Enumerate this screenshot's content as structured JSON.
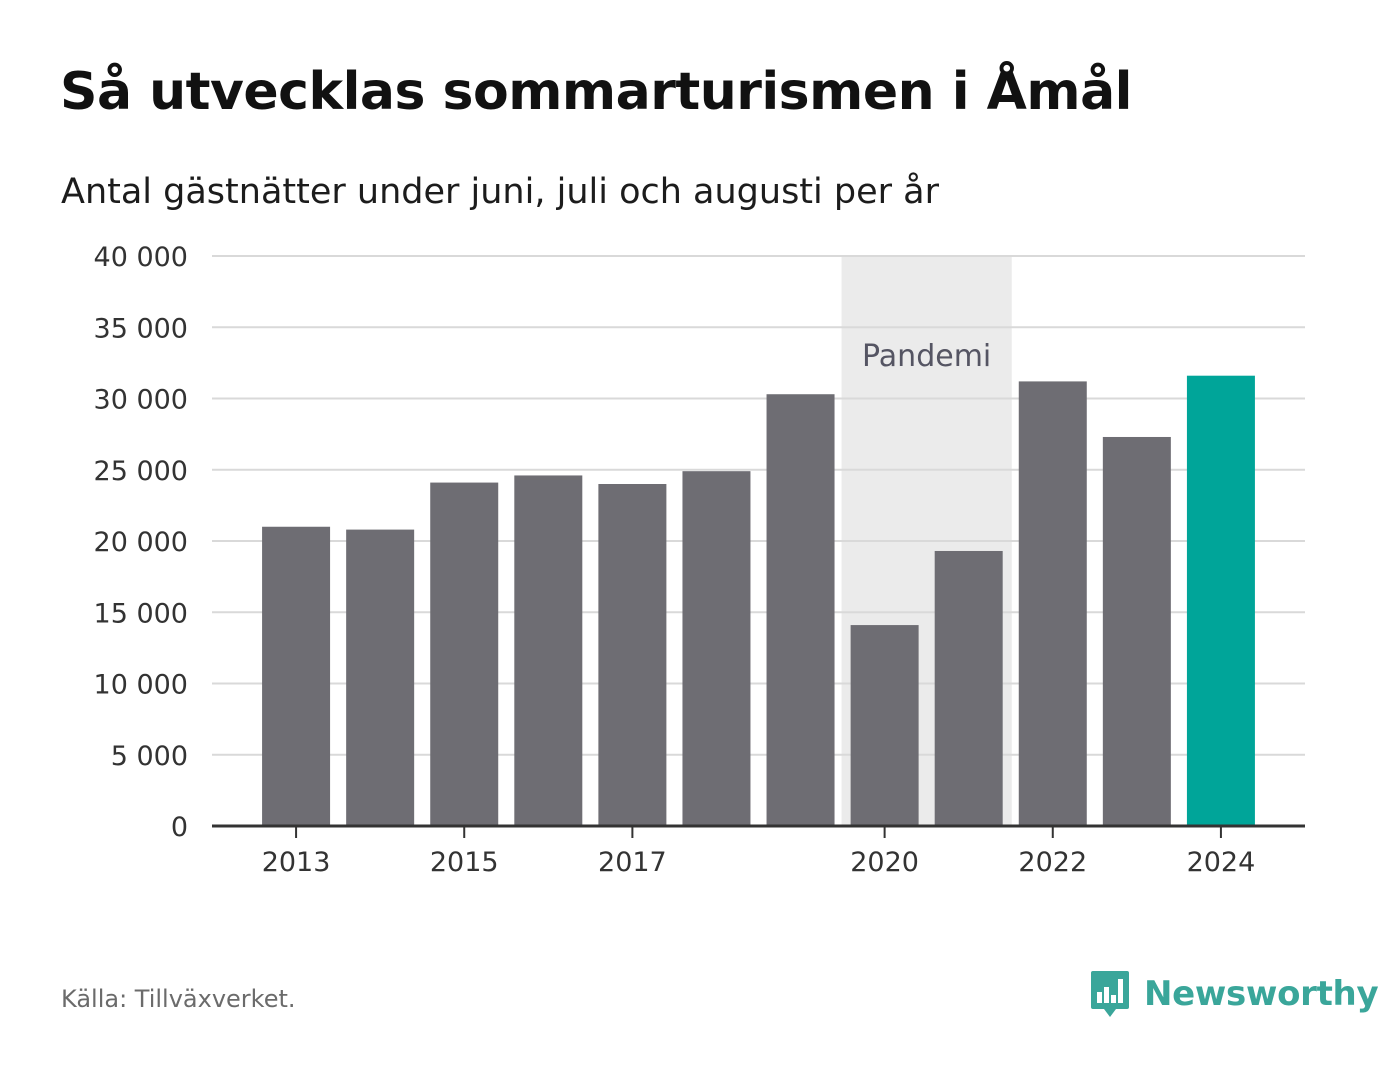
{
  "header": {
    "title": "Så utvecklas sommarturismen i Åmål",
    "subtitle": "Antal gästnätter under juni, juli och augusti per år"
  },
  "footer": {
    "source": "Källa: Tillväxverket.",
    "brand": "Newsworthy",
    "brand_icon": "bar-chart-speech-bubble-icon"
  },
  "colors": {
    "bar": "#6e6d73",
    "highlight": "#00a599",
    "band": "#ebebeb",
    "brand": "#3aa69a"
  },
  "chart_data": {
    "type": "bar",
    "categories": [
      "2013",
      "2014",
      "2015",
      "2016",
      "2017",
      "2018",
      "2019",
      "2020",
      "2021",
      "2022",
      "2023",
      "2024"
    ],
    "values": [
      21000,
      20800,
      24100,
      24600,
      24000,
      24900,
      30300,
      14100,
      19300,
      31200,
      27300,
      31600
    ],
    "highlight_category": "2024",
    "xticks": [
      "2013",
      "2015",
      "2017",
      "2020",
      "2022",
      "2024"
    ],
    "yticks": [
      "0",
      "5 000",
      "10 000",
      "15 000",
      "20 000",
      "25 000",
      "30 000",
      "35 000",
      "40 000"
    ],
    "ytick_values": [
      0,
      5000,
      10000,
      15000,
      20000,
      25000,
      30000,
      35000,
      40000
    ],
    "ylim": [
      0,
      40000
    ],
    "grid": true,
    "xlabel": "",
    "ylabel": "",
    "annotations": [
      {
        "text": "Pandemi",
        "from": "2020",
        "to": "2021"
      }
    ]
  }
}
